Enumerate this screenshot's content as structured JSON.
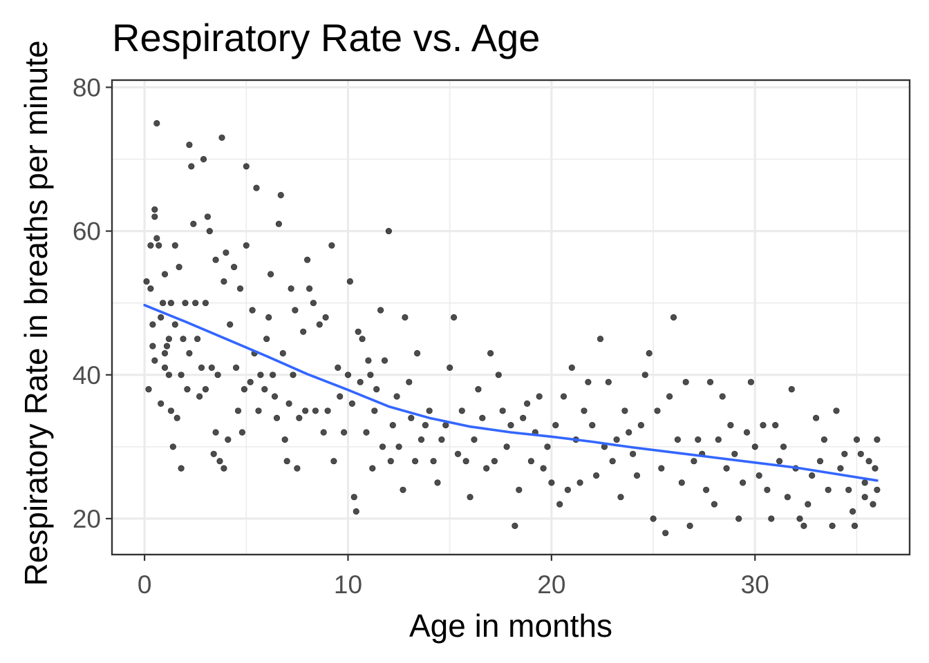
{
  "chart_data": {
    "type": "scatter",
    "title": "Respiratory Rate vs. Age",
    "xlabel": "Age in months",
    "ylabel": "Respiratory Rate in breaths per minute",
    "xlim": [
      -1.6,
      37.6
    ],
    "ylim": [
      15,
      81
    ],
    "x_ticks": [
      0,
      10,
      20,
      30
    ],
    "x_tick_labels": [
      "0",
      "10",
      "20",
      "30"
    ],
    "y_ticks": [
      20,
      40,
      60,
      80
    ],
    "y_tick_labels": [
      "20",
      "40",
      "60",
      "80"
    ],
    "grid": true,
    "colors": {
      "points": "#000000",
      "trend": "#3366FF",
      "grid": "#EBEBEB",
      "border": "#333333"
    },
    "points": [
      [
        0.1,
        53
      ],
      [
        0.2,
        38
      ],
      [
        0.3,
        58
      ],
      [
        0.3,
        52
      ],
      [
        0.4,
        47
      ],
      [
        0.4,
        44
      ],
      [
        0.5,
        62
      ],
      [
        0.5,
        42
      ],
      [
        0.5,
        63
      ],
      [
        0.6,
        59
      ],
      [
        0.6,
        75
      ],
      [
        0.7,
        58
      ],
      [
        0.8,
        48
      ],
      [
        0.8,
        36
      ],
      [
        0.9,
        50
      ],
      [
        1.0,
        54
      ],
      [
        1.0,
        43
      ],
      [
        1.0,
        41
      ],
      [
        1.1,
        44
      ],
      [
        1.2,
        40
      ],
      [
        1.2,
        45
      ],
      [
        1.3,
        50
      ],
      [
        1.3,
        35
      ],
      [
        1.4,
        30
      ],
      [
        1.5,
        58
      ],
      [
        1.5,
        47
      ],
      [
        1.6,
        34
      ],
      [
        1.7,
        55
      ],
      [
        1.8,
        40
      ],
      [
        1.8,
        27
      ],
      [
        1.9,
        45
      ],
      [
        2.0,
        50
      ],
      [
        2.1,
        38
      ],
      [
        2.2,
        43
      ],
      [
        2.2,
        72
      ],
      [
        2.3,
        69
      ],
      [
        2.4,
        61
      ],
      [
        2.5,
        50
      ],
      [
        2.6,
        45
      ],
      [
        2.7,
        37
      ],
      [
        2.8,
        41
      ],
      [
        2.9,
        70
      ],
      [
        3.0,
        38
      ],
      [
        3.0,
        50
      ],
      [
        3.1,
        62
      ],
      [
        3.2,
        60
      ],
      [
        3.3,
        41
      ],
      [
        3.4,
        29
      ],
      [
        3.5,
        56
      ],
      [
        3.5,
        32
      ],
      [
        3.6,
        40
      ],
      [
        3.7,
        28
      ],
      [
        3.8,
        73
      ],
      [
        3.9,
        53
      ],
      [
        3.9,
        27
      ],
      [
        4.0,
        57
      ],
      [
        4.1,
        31
      ],
      [
        4.2,
        47
      ],
      [
        4.4,
        55
      ],
      [
        4.5,
        41
      ],
      [
        4.6,
        35
      ],
      [
        4.7,
        52
      ],
      [
        4.8,
        32
      ],
      [
        4.9,
        38
      ],
      [
        5.0,
        58
      ],
      [
        5.0,
        69
      ],
      [
        5.2,
        39
      ],
      [
        5.3,
        49
      ],
      [
        5.4,
        43
      ],
      [
        5.5,
        66
      ],
      [
        5.6,
        35
      ],
      [
        5.7,
        40
      ],
      [
        5.9,
        38
      ],
      [
        6.0,
        45
      ],
      [
        6.1,
        48
      ],
      [
        6.2,
        54
      ],
      [
        6.3,
        40
      ],
      [
        6.4,
        37
      ],
      [
        6.5,
        34
      ],
      [
        6.6,
        61
      ],
      [
        6.7,
        65
      ],
      [
        6.8,
        43
      ],
      [
        6.9,
        31
      ],
      [
        7.0,
        28
      ],
      [
        7.1,
        36
      ],
      [
        7.2,
        52
      ],
      [
        7.3,
        40
      ],
      [
        7.4,
        49
      ],
      [
        7.5,
        27
      ],
      [
        7.6,
        34
      ],
      [
        7.8,
        46
      ],
      [
        7.9,
        35
      ],
      [
        8.0,
        56
      ],
      [
        8.1,
        52
      ],
      [
        8.3,
        50
      ],
      [
        8.4,
        35
      ],
      [
        8.6,
        47
      ],
      [
        8.8,
        32
      ],
      [
        8.9,
        48
      ],
      [
        9.0,
        35
      ],
      [
        9.2,
        58
      ],
      [
        9.3,
        28
      ],
      [
        9.5,
        41
      ],
      [
        9.6,
        37
      ],
      [
        9.8,
        32
      ],
      [
        10.0,
        40
      ],
      [
        10.1,
        53
      ],
      [
        10.2,
        36
      ],
      [
        10.3,
        23
      ],
      [
        10.4,
        21
      ],
      [
        10.5,
        46
      ],
      [
        10.6,
        39
      ],
      [
        10.7,
        45
      ],
      [
        10.9,
        32
      ],
      [
        11.0,
        42
      ],
      [
        11.1,
        40
      ],
      [
        11.2,
        27
      ],
      [
        11.3,
        35
      ],
      [
        11.4,
        38
      ],
      [
        11.6,
        49
      ],
      [
        11.7,
        30
      ],
      [
        11.8,
        42
      ],
      [
        12.0,
        60
      ],
      [
        12.1,
        28
      ],
      [
        12.2,
        33
      ],
      [
        12.4,
        37
      ],
      [
        12.5,
        30
      ],
      [
        12.7,
        24
      ],
      [
        12.8,
        48
      ],
      [
        13.0,
        39
      ],
      [
        13.1,
        34
      ],
      [
        13.3,
        28
      ],
      [
        13.4,
        43
      ],
      [
        13.6,
        31
      ],
      [
        13.8,
        33
      ],
      [
        14.0,
        35
      ],
      [
        14.2,
        28
      ],
      [
        14.4,
        25
      ],
      [
        14.6,
        31
      ],
      [
        14.8,
        33
      ],
      [
        15.0,
        41
      ],
      [
        15.2,
        48
      ],
      [
        15.4,
        29
      ],
      [
        15.6,
        35
      ],
      [
        15.8,
        28
      ],
      [
        16.0,
        23
      ],
      [
        16.2,
        31
      ],
      [
        16.4,
        38
      ],
      [
        16.6,
        34
      ],
      [
        16.8,
        27
      ],
      [
        17.0,
        43
      ],
      [
        17.2,
        28
      ],
      [
        17.4,
        40
      ],
      [
        17.6,
        35
      ],
      [
        17.8,
        30
      ],
      [
        18.0,
        33
      ],
      [
        18.2,
        19
      ],
      [
        18.4,
        24
      ],
      [
        18.6,
        34
      ],
      [
        18.8,
        36
      ],
      [
        19.0,
        28
      ],
      [
        19.2,
        32
      ],
      [
        19.4,
        37
      ],
      [
        19.6,
        27
      ],
      [
        19.8,
        30
      ],
      [
        20.0,
        25
      ],
      [
        20.2,
        33
      ],
      [
        20.4,
        22
      ],
      [
        20.6,
        37
      ],
      [
        20.8,
        24
      ],
      [
        21.0,
        41
      ],
      [
        21.2,
        31
      ],
      [
        21.4,
        25
      ],
      [
        21.6,
        35
      ],
      [
        21.8,
        39
      ],
      [
        22.0,
        33
      ],
      [
        22.2,
        26
      ],
      [
        22.4,
        45
      ],
      [
        22.6,
        30
      ],
      [
        22.8,
        39
      ],
      [
        23.0,
        28
      ],
      [
        23.2,
        31
      ],
      [
        23.4,
        23
      ],
      [
        23.6,
        35
      ],
      [
        23.8,
        32
      ],
      [
        24.0,
        29
      ],
      [
        24.2,
        26
      ],
      [
        24.4,
        33
      ],
      [
        24.6,
        40
      ],
      [
        24.8,
        43
      ],
      [
        25.0,
        20
      ],
      [
        25.2,
        35
      ],
      [
        25.4,
        27
      ],
      [
        25.6,
        18
      ],
      [
        25.8,
        37
      ],
      [
        26.0,
        48
      ],
      [
        26.2,
        31
      ],
      [
        26.4,
        25
      ],
      [
        26.6,
        39
      ],
      [
        26.8,
        19
      ],
      [
        27.0,
        28
      ],
      [
        27.2,
        31
      ],
      [
        27.4,
        29
      ],
      [
        27.6,
        24
      ],
      [
        27.8,
        39
      ],
      [
        28.0,
        22
      ],
      [
        28.2,
        31
      ],
      [
        28.4,
        37
      ],
      [
        28.6,
        27
      ],
      [
        28.8,
        33
      ],
      [
        29.0,
        29
      ],
      [
        29.2,
        20
      ],
      [
        29.4,
        25
      ],
      [
        29.6,
        32
      ],
      [
        29.8,
        39
      ],
      [
        30.0,
        30
      ],
      [
        30.2,
        26
      ],
      [
        30.4,
        33
      ],
      [
        30.6,
        24
      ],
      [
        30.8,
        20
      ],
      [
        31.0,
        33
      ],
      [
        31.2,
        28
      ],
      [
        31.4,
        30
      ],
      [
        31.6,
        23
      ],
      [
        31.8,
        38
      ],
      [
        32.0,
        27
      ],
      [
        32.2,
        20
      ],
      [
        32.4,
        19
      ],
      [
        32.6,
        22
      ],
      [
        32.8,
        26
      ],
      [
        33.0,
        34
      ],
      [
        33.2,
        28
      ],
      [
        33.4,
        31
      ],
      [
        33.6,
        24
      ],
      [
        33.8,
        19
      ],
      [
        34.0,
        35
      ],
      [
        34.2,
        27
      ],
      [
        34.4,
        29
      ],
      [
        34.6,
        24
      ],
      [
        34.8,
        21
      ],
      [
        35.0,
        31
      ],
      [
        35.2,
        29
      ],
      [
        35.4,
        25
      ],
      [
        35.6,
        28
      ],
      [
        35.8,
        22
      ],
      [
        36.0,
        24
      ],
      [
        36.0,
        31
      ],
      [
        35.9,
        27
      ],
      [
        35.4,
        23
      ],
      [
        34.9,
        19
      ]
    ],
    "trend": {
      "name": "smooth",
      "x": [
        0,
        2,
        4,
        6,
        8,
        10,
        12,
        14,
        16,
        18,
        20,
        22,
        24,
        26,
        28,
        30,
        32,
        34,
        36
      ],
      "y": [
        49.7,
        47.4,
        45.0,
        42.6,
        40.1,
        37.9,
        35.6,
        34.0,
        32.8,
        32.0,
        31.4,
        30.7,
        29.9,
        29.2,
        28.5,
        27.8,
        27.1,
        26.2,
        25.3
      ]
    }
  }
}
